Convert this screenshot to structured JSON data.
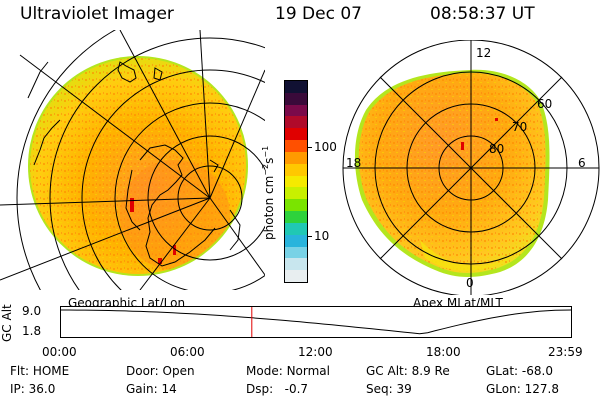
{
  "header": {
    "instrument": "Ultraviolet Imager",
    "date": "19 Dec 07",
    "time": "08:58:37 UT"
  },
  "colorbar": {
    "unit_label": "photon cm",
    "unit_exp1": "−2",
    "unit_mid": "s",
    "unit_exp2": "−1",
    "ticks": [
      "100",
      "10"
    ],
    "colors": [
      "#111133",
      "#3a0a3a",
      "#7a0a4a",
      "#b00a2a",
      "#e00000",
      "#ff5000",
      "#ff9a00",
      "#ffc800",
      "#f5ea00",
      "#c8f000",
      "#7ae400",
      "#2ed23c",
      "#20c8b4",
      "#28b4dc",
      "#78d2e6",
      "#c8e6ee",
      "#e8eef0"
    ]
  },
  "geo_panel": {
    "caption": "Geographic Lat/Lon"
  },
  "apex_panel": {
    "caption": "Apex MLat/MLT",
    "mlt_labels": [
      "12",
      "18",
      "6",
      "0"
    ],
    "lat_labels": [
      "60",
      "70",
      "80"
    ]
  },
  "altitude_plot": {
    "axis_label": "GC Alt",
    "y_ticks": [
      "9.0",
      "1.8"
    ],
    "x_ticks": [
      "00:00",
      "06:00",
      "12:00",
      "18:00",
      "23:59"
    ],
    "current_marker_hour": 8.98
  },
  "info": {
    "row1": [
      {
        "label": "Flt:",
        "value": "HOME"
      },
      {
        "label": "Door:",
        "value": "Open"
      },
      {
        "label": "Mode:",
        "value": "Normal"
      },
      {
        "label": "GC Alt:",
        "value": "8.9 Re"
      },
      {
        "label": "GLat:",
        "value": "-68.0"
      }
    ],
    "row2": [
      {
        "label": "IP:",
        "value": "36.0"
      },
      {
        "label": "Gain:",
        "value": "14"
      },
      {
        "label": "Dsp:",
        "value": "  -0.7"
      },
      {
        "label": "Seq:",
        "value": "39"
      },
      {
        "label": "GLon:",
        "value": "127.8"
      }
    ]
  }
}
